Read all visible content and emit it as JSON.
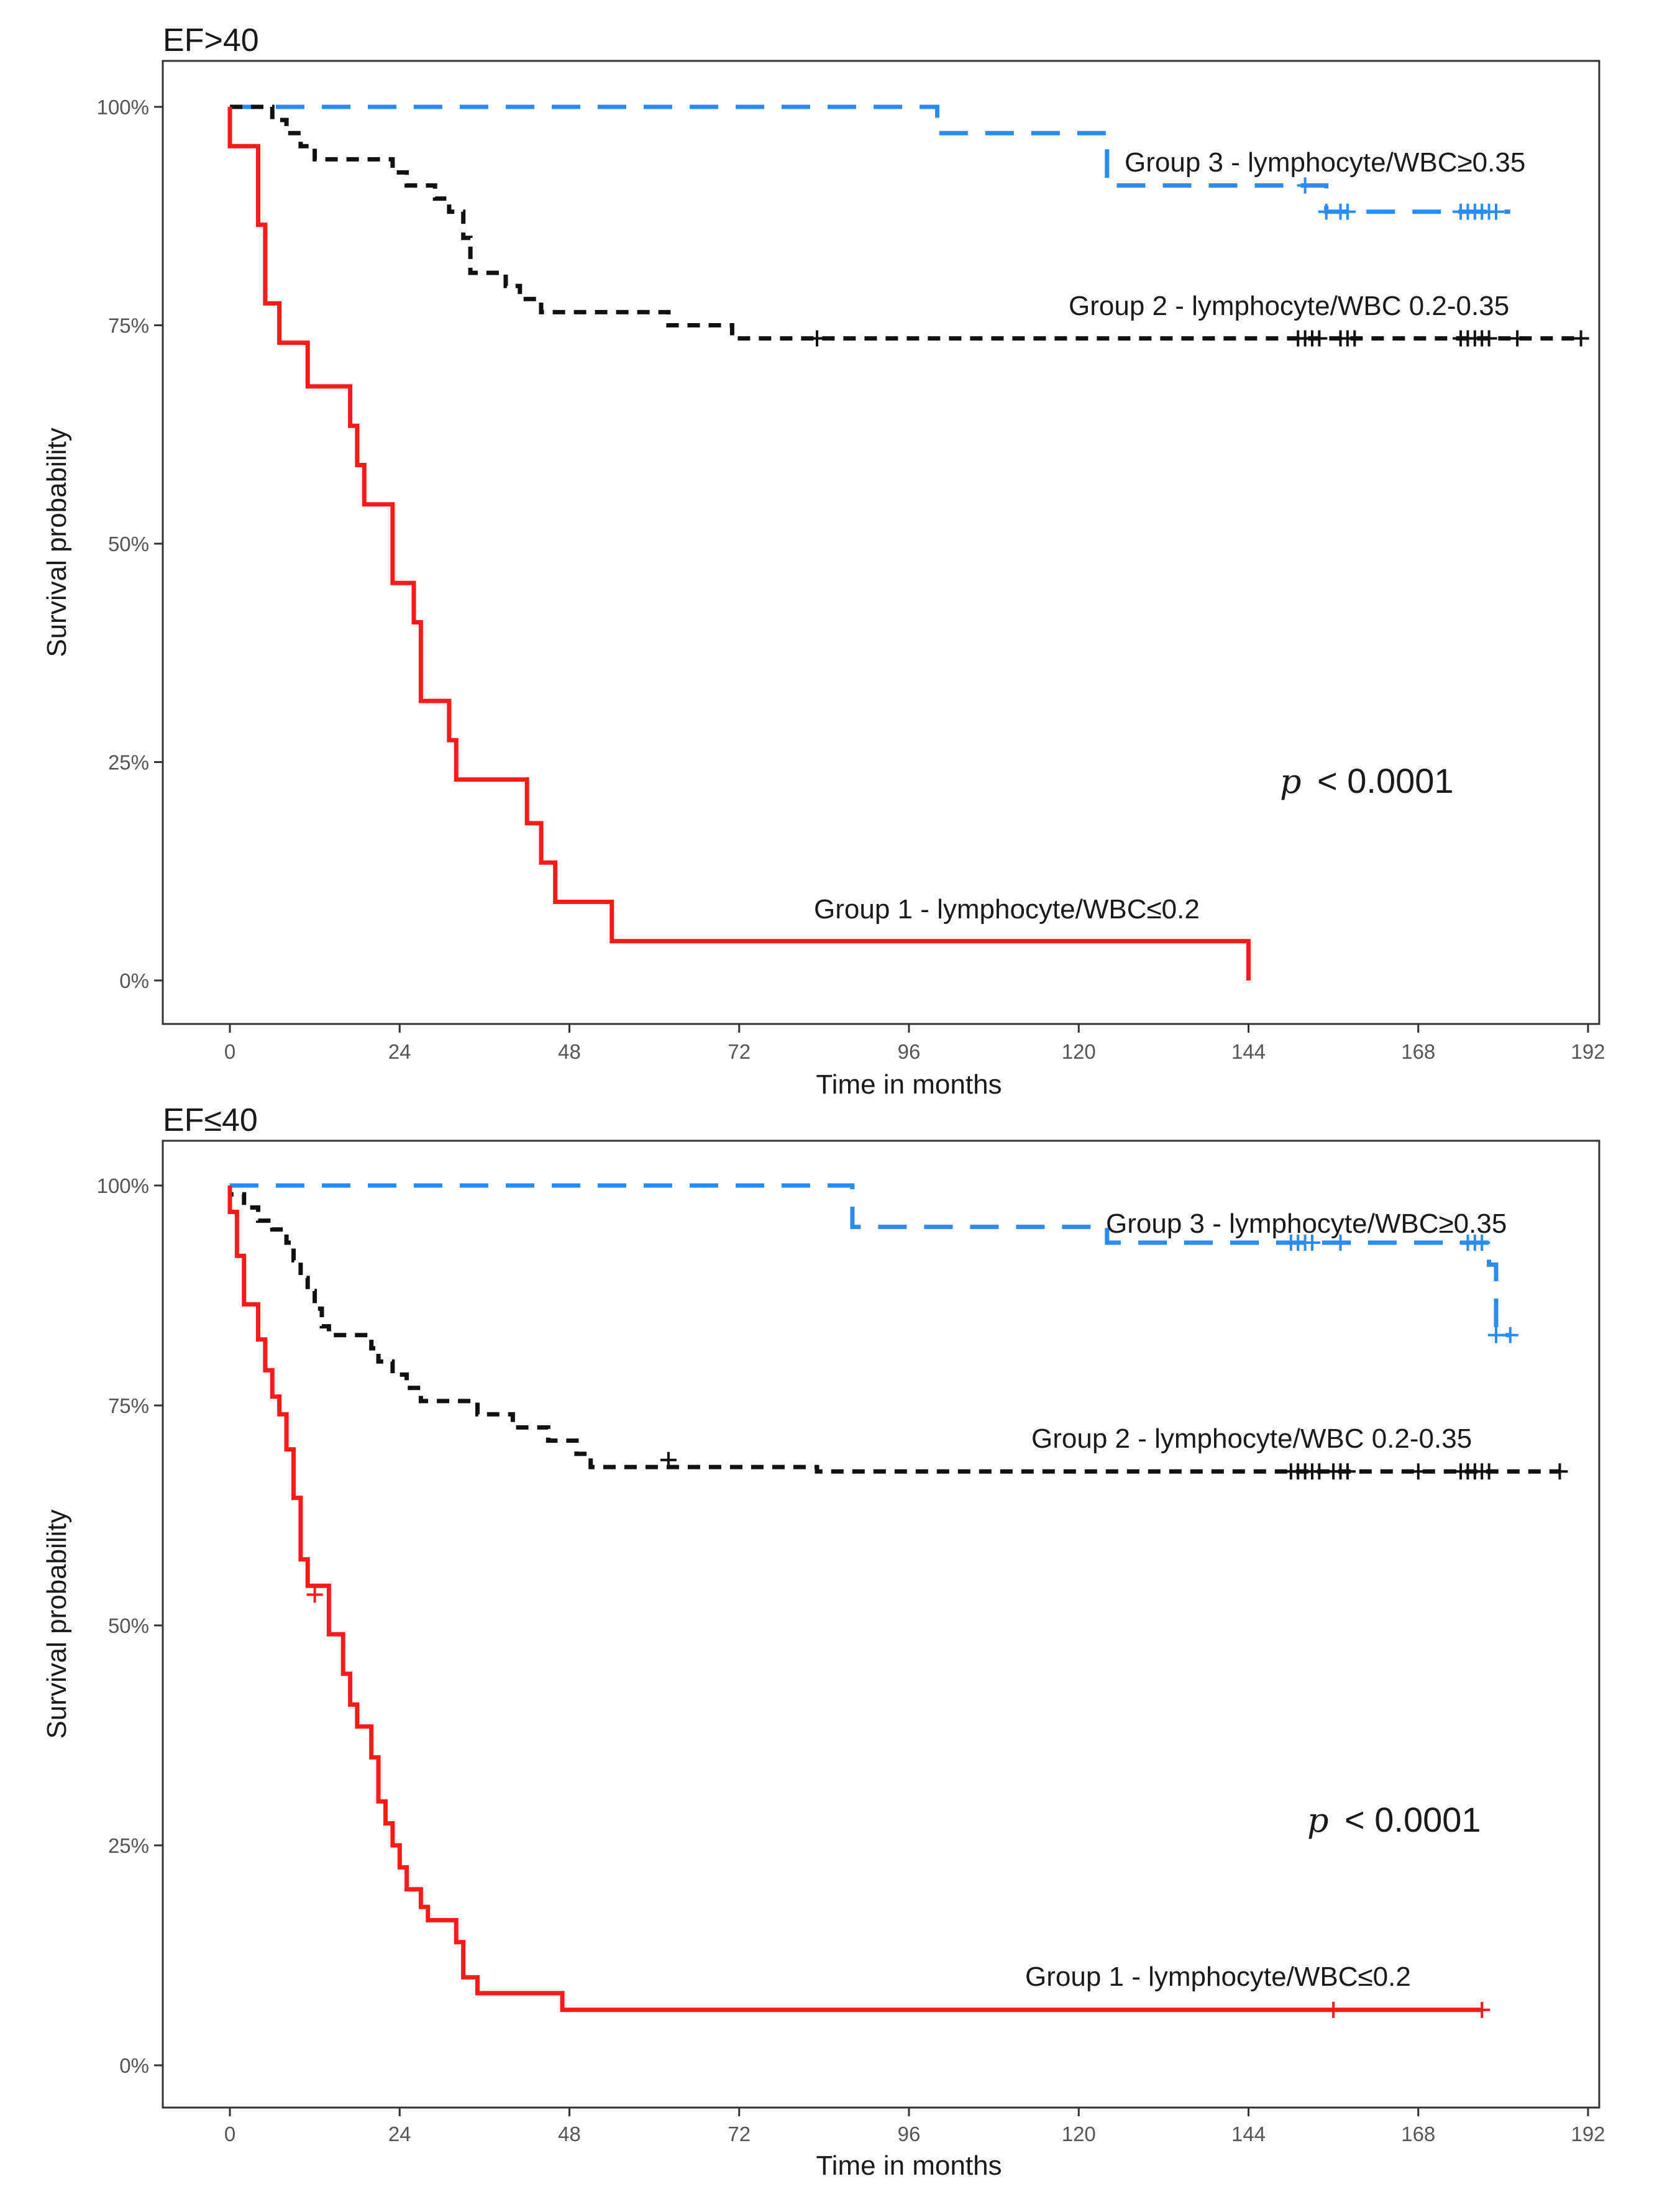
{
  "chart_data": [
    {
      "type": "line",
      "subtype": "kaplan-meier",
      "title": "EF>40",
      "xlabel": "Time in months",
      "ylabel": "Survival probability",
      "xlim": [
        0,
        192
      ],
      "ylim": [
        0,
        1
      ],
      "x_ticks": [
        0,
        24,
        48,
        72,
        96,
        120,
        144,
        168,
        192
      ],
      "y_ticks": [
        0,
        0.25,
        0.5,
        0.75,
        1.0
      ],
      "y_tick_labels": [
        "0%",
        "25%",
        "50%",
        "75%",
        "100%"
      ],
      "grid": false,
      "p_value": {
        "symbol": "p",
        "text": "< 0.0001"
      },
      "series": [
        {
          "name": "Group 3 - lymphocyte/WBC≥0.35",
          "color": "#2a8bf2",
          "dash": "long",
          "steps": [
            [
              0,
              1.0
            ],
            [
              100,
              1.0
            ],
            [
              100,
              0.97
            ],
            [
              124,
              0.97
            ],
            [
              124,
              0.91
            ],
            [
              155,
              0.91
            ],
            [
              155,
              0.88
            ],
            [
              160,
              0.88
            ],
            [
              160,
              0.88
            ],
            [
              181,
              0.88
            ]
          ],
          "censors": [
            [
              152,
              0.91
            ],
            [
              155,
              0.88
            ],
            [
              157,
              0.88
            ],
            [
              158,
              0.88
            ],
            [
              174,
              0.88
            ],
            [
              175,
              0.88
            ],
            [
              176,
              0.88
            ],
            [
              177,
              0.88
            ],
            [
              178,
              0.88
            ],
            [
              179,
              0.88
            ]
          ]
        },
        {
          "name": "Group 2 - lymphocyte/WBC 0.2-0.35",
          "color": "#111111",
          "dash": "short",
          "steps": [
            [
              0,
              1.0
            ],
            [
              6,
              1.0
            ],
            [
              6,
              0.985
            ],
            [
              8,
              0.985
            ],
            [
              8,
              0.97
            ],
            [
              10,
              0.97
            ],
            [
              10,
              0.955
            ],
            [
              12,
              0.955
            ],
            [
              12,
              0.94
            ],
            [
              23,
              0.94
            ],
            [
              23,
              0.925
            ],
            [
              25,
              0.925
            ],
            [
              25,
              0.91
            ],
            [
              29,
              0.91
            ],
            [
              29,
              0.895
            ],
            [
              31,
              0.895
            ],
            [
              31,
              0.88
            ],
            [
              33,
              0.88
            ],
            [
              33,
              0.85
            ],
            [
              34,
              0.85
            ],
            [
              34,
              0.81
            ],
            [
              39,
              0.81
            ],
            [
              39,
              0.795
            ],
            [
              41,
              0.795
            ],
            [
              41,
              0.78
            ],
            [
              44,
              0.78
            ],
            [
              44,
              0.765
            ],
            [
              62,
              0.765
            ],
            [
              62,
              0.75
            ],
            [
              71,
              0.75
            ],
            [
              71,
              0.735
            ],
            [
              191,
              0.735
            ]
          ],
          "censors": [
            [
              83,
              0.735
            ],
            [
              151,
              0.735
            ],
            [
              152,
              0.735
            ],
            [
              153,
              0.735
            ],
            [
              154,
              0.735
            ],
            [
              157,
              0.735
            ],
            [
              158,
              0.735
            ],
            [
              159,
              0.735
            ],
            [
              174,
              0.735
            ],
            [
              175,
              0.735
            ],
            [
              176,
              0.735
            ],
            [
              177,
              0.735
            ],
            [
              178,
              0.735
            ],
            [
              182,
              0.735
            ],
            [
              191,
              0.735
            ]
          ]
        },
        {
          "name": "Group 1 - lymphocyte/WBC≤0.2",
          "color": "#ff1a1a",
          "dash": "solid",
          "steps": [
            [
              0,
              1.0
            ],
            [
              0,
              0.955
            ],
            [
              4,
              0.955
            ],
            [
              4,
              0.865
            ],
            [
              5,
              0.865
            ],
            [
              5,
              0.775
            ],
            [
              7,
              0.775
            ],
            [
              7,
              0.73
            ],
            [
              11,
              0.73
            ],
            [
              11,
              0.68
            ],
            [
              17,
              0.68
            ],
            [
              17,
              0.635
            ],
            [
              18,
              0.635
            ],
            [
              18,
              0.59
            ],
            [
              19,
              0.59
            ],
            [
              19,
              0.545
            ],
            [
              23,
              0.545
            ],
            [
              23,
              0.455
            ],
            [
              26,
              0.455
            ],
            [
              26,
              0.41
            ],
            [
              27,
              0.41
            ],
            [
              27,
              0.32
            ],
            [
              31,
              0.32
            ],
            [
              31,
              0.275
            ],
            [
              32,
              0.275
            ],
            [
              32,
              0.23
            ],
            [
              42,
              0.23
            ],
            [
              42,
              0.18
            ],
            [
              44,
              0.18
            ],
            [
              44,
              0.135
            ],
            [
              46,
              0.135
            ],
            [
              46,
              0.09
            ],
            [
              54,
              0.09
            ],
            [
              54,
              0.045
            ],
            [
              144,
              0.045
            ],
            [
              144,
              0.0
            ]
          ],
          "censors": []
        }
      ]
    },
    {
      "type": "line",
      "subtype": "kaplan-meier",
      "title": "EF≤40",
      "xlabel": "Time in months",
      "ylabel": "Survival probability",
      "xlim": [
        0,
        192
      ],
      "ylim": [
        0,
        1
      ],
      "x_ticks": [
        0,
        24,
        48,
        72,
        96,
        120,
        144,
        168,
        192
      ],
      "y_ticks": [
        0,
        0.25,
        0.5,
        0.75,
        1.0
      ],
      "y_tick_labels": [
        "0%",
        "25%",
        "50%",
        "75%",
        "100%"
      ],
      "grid": false,
      "p_value": {
        "symbol": "p",
        "text": "< 0.0001"
      },
      "series": [
        {
          "name": "Group 3 - lymphocyte/WBC≥0.35",
          "color": "#2a8bf2",
          "dash": "long",
          "steps": [
            [
              0,
              1.0
            ],
            [
              88,
              1.0
            ],
            [
              88,
              0.953
            ],
            [
              124,
              0.953
            ],
            [
              124,
              0.935
            ],
            [
              178,
              0.935
            ],
            [
              178,
              0.91
            ],
            [
              179,
              0.91
            ],
            [
              179,
              0.83
            ],
            [
              181,
              0.83
            ]
          ],
          "censors": [
            [
              150,
              0.935
            ],
            [
              151,
              0.935
            ],
            [
              152,
              0.935
            ],
            [
              153,
              0.935
            ],
            [
              157,
              0.935
            ],
            [
              175,
              0.935
            ],
            [
              176,
              0.935
            ],
            [
              177,
              0.935
            ],
            [
              179,
              0.83
            ],
            [
              181,
              0.83
            ]
          ]
        },
        {
          "name": "Group 2 - lymphocyte/WBC 0.2-0.35",
          "color": "#111111",
          "dash": "short",
          "steps": [
            [
              0,
              1.0
            ],
            [
              0,
              0.99
            ],
            [
              2,
              0.99
            ],
            [
              2,
              0.975
            ],
            [
              4,
              0.975
            ],
            [
              4,
              0.96
            ],
            [
              6,
              0.96
            ],
            [
              6,
              0.95
            ],
            [
              8,
              0.95
            ],
            [
              8,
              0.935
            ],
            [
              9,
              0.935
            ],
            [
              9,
              0.915
            ],
            [
              10,
              0.915
            ],
            [
              10,
              0.895
            ],
            [
              11,
              0.895
            ],
            [
              11,
              0.88
            ],
            [
              12,
              0.88
            ],
            [
              12,
              0.86
            ],
            [
              13,
              0.86
            ],
            [
              13,
              0.84
            ],
            [
              14,
              0.84
            ],
            [
              14,
              0.83
            ],
            [
              20,
              0.83
            ],
            [
              20,
              0.815
            ],
            [
              21,
              0.815
            ],
            [
              21,
              0.8
            ],
            [
              23,
              0.8
            ],
            [
              23,
              0.785
            ],
            [
              25,
              0.785
            ],
            [
              25,
              0.77
            ],
            [
              27,
              0.77
            ],
            [
              27,
              0.755
            ],
            [
              35,
              0.755
            ],
            [
              35,
              0.74
            ],
            [
              40,
              0.74
            ],
            [
              40,
              0.725
            ],
            [
              45,
              0.725
            ],
            [
              45,
              0.71
            ],
            [
              49,
              0.71
            ],
            [
              49,
              0.695
            ],
            [
              51,
              0.695
            ],
            [
              51,
              0.68
            ],
            [
              83,
              0.68
            ],
            [
              83,
              0.675
            ],
            [
              188,
              0.675
            ]
          ],
          "censors": [
            [
              62,
              0.688
            ],
            [
              150,
              0.675
            ],
            [
              151,
              0.675
            ],
            [
              152,
              0.675
            ],
            [
              153,
              0.675
            ],
            [
              154,
              0.675
            ],
            [
              156,
              0.675
            ],
            [
              157,
              0.675
            ],
            [
              158,
              0.675
            ],
            [
              168,
              0.675
            ],
            [
              174,
              0.675
            ],
            [
              175,
              0.675
            ],
            [
              176,
              0.675
            ],
            [
              177,
              0.675
            ],
            [
              178,
              0.675
            ],
            [
              188,
              0.675
            ]
          ]
        },
        {
          "name": "Group 1 - lymphocyte/WBC≤0.2",
          "color": "#ff1a1a",
          "dash": "solid",
          "steps": [
            [
              0,
              1.0
            ],
            [
              0,
              0.97
            ],
            [
              1,
              0.97
            ],
            [
              1,
              0.92
            ],
            [
              2,
              0.92
            ],
            [
              2,
              0.865
            ],
            [
              4,
              0.865
            ],
            [
              4,
              0.825
            ],
            [
              5,
              0.825
            ],
            [
              5,
              0.79
            ],
            [
              6,
              0.79
            ],
            [
              6,
              0.76
            ],
            [
              7,
              0.76
            ],
            [
              7,
              0.74
            ],
            [
              8,
              0.74
            ],
            [
              8,
              0.7
            ],
            [
              9,
              0.7
            ],
            [
              9,
              0.645
            ],
            [
              10,
              0.645
            ],
            [
              10,
              0.575
            ],
            [
              11,
              0.575
            ],
            [
              11,
              0.545
            ],
            [
              14,
              0.545
            ],
            [
              14,
              0.49
            ],
            [
              16,
              0.49
            ],
            [
              16,
              0.445
            ],
            [
              17,
              0.445
            ],
            [
              17,
              0.41
            ],
            [
              18,
              0.41
            ],
            [
              18,
              0.385
            ],
            [
              20,
              0.385
            ],
            [
              20,
              0.35
            ],
            [
              21,
              0.35
            ],
            [
              21,
              0.3
            ],
            [
              22,
              0.3
            ],
            [
              22,
              0.275
            ],
            [
              23,
              0.275
            ],
            [
              23,
              0.25
            ],
            [
              24,
              0.25
            ],
            [
              24,
              0.225
            ],
            [
              25,
              0.225
            ],
            [
              25,
              0.2
            ],
            [
              27,
              0.2
            ],
            [
              27,
              0.18
            ],
            [
              28,
              0.18
            ],
            [
              28,
              0.165
            ],
            [
              32,
              0.165
            ],
            [
              32,
              0.14
            ],
            [
              33,
              0.14
            ],
            [
              33,
              0.1
            ],
            [
              35,
              0.1
            ],
            [
              35,
              0.082
            ],
            [
              47,
              0.082
            ],
            [
              47,
              0.063
            ],
            [
              177,
              0.063
            ]
          ],
          "censors": [
            [
              12,
              0.535
            ],
            [
              156,
              0.063
            ],
            [
              177,
              0.063
            ]
          ]
        }
      ]
    }
  ]
}
